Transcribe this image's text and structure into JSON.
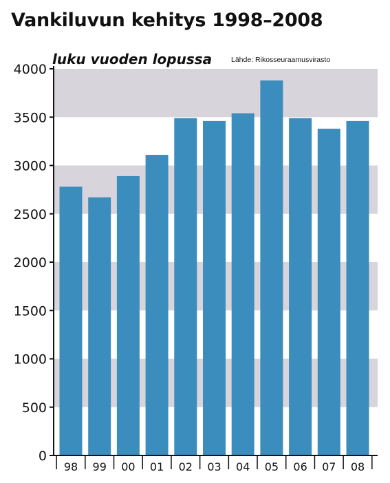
{
  "chart_data": {
    "type": "bar",
    "title": "Vankiluvun kehitys 1998–2008",
    "subtitle": "luku vuoden lopussa",
    "source": "Lähde: Rikosseuraamusvirasto",
    "categories": [
      "98",
      "99",
      "00",
      "01",
      "02",
      "03",
      "04",
      "05",
      "06",
      "07",
      "08"
    ],
    "values": [
      2780,
      2670,
      2890,
      3110,
      3490,
      3460,
      3540,
      3880,
      3490,
      3380,
      3460
    ],
    "ylim": [
      0,
      4000
    ],
    "yticks": [
      "0",
      "500",
      "1000",
      "1500",
      "2000",
      "2500",
      "3000",
      "3500",
      "4000"
    ],
    "xlabel": "",
    "ylabel": "",
    "grid": "alternating shaded bands",
    "colors": {
      "bar": "#3a8dbd",
      "band": "#d8d4db",
      "axis": "#111111"
    }
  }
}
